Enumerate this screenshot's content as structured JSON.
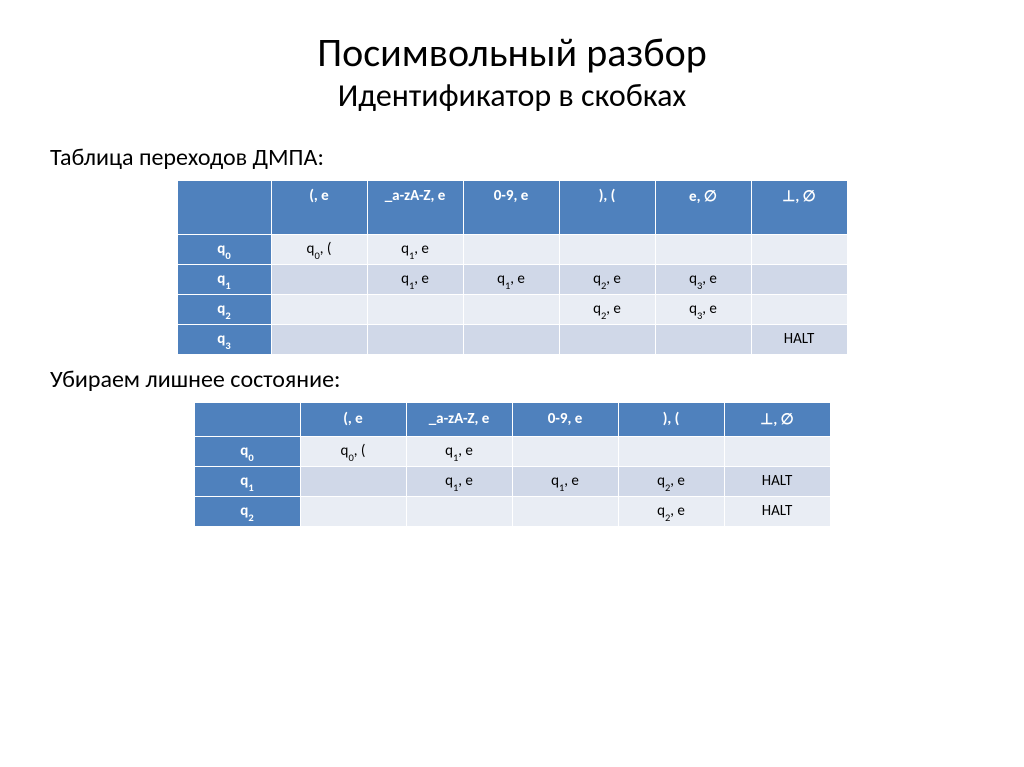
{
  "title": {
    "line1": "Посимвольный разбор",
    "line2": "Идентификатор в скобках"
  },
  "section1_label": "Таблица переходов ДМПА:",
  "section2_label": "Убираем лишнее состояние:",
  "table1": {
    "columns": [
      "(, e",
      "_a-zA-Z, e",
      "0-9, e",
      "), (",
      "e, ∅",
      "⊥, ∅"
    ],
    "row_headers_html": [
      "q<sub>0</sub>",
      "q<sub>1</sub>",
      "q<sub>2</sub>",
      "q<sub>3</sub>"
    ],
    "rows_html": [
      [
        "q<sub>0</sub>, (",
        "q<sub>1</sub>, e",
        "",
        "",
        "",
        ""
      ],
      [
        "",
        "q<sub>1</sub>, e",
        "q<sub>1</sub>, e",
        "q<sub>2</sub>, e",
        "q<sub>3</sub>, e",
        ""
      ],
      [
        "",
        "",
        "",
        "q<sub>2</sub>, e",
        "q<sub>3</sub>, e",
        ""
      ],
      [
        "",
        "",
        "",
        "",
        "",
        "HALT"
      ]
    ],
    "colors": {
      "header_bg": "#4f81bd",
      "header_fg": "#ffffff",
      "row_even_bg": "#e9edf4",
      "row_odd_bg": "#d0d8e8",
      "border": "#ffffff"
    }
  },
  "table2": {
    "columns": [
      "(, e",
      "_a-zA-Z, e",
      "0-9, e",
      "), (",
      "⊥, ∅"
    ],
    "row_headers_html": [
      "q<sub>0</sub>",
      "q<sub>1</sub>",
      "q<sub>2</sub>"
    ],
    "rows_html": [
      [
        "q<sub>0</sub>, (",
        "q<sub>1</sub>, e",
        "",
        "",
        ""
      ],
      [
        "",
        "q<sub>1</sub>, e",
        "q<sub>1</sub>, e",
        "q<sub>2</sub>, e",
        "HALT"
      ],
      [
        "",
        "",
        "",
        "q<sub>2</sub>, e",
        "HALT"
      ]
    ],
    "colors": {
      "header_bg": "#4f81bd",
      "header_fg": "#ffffff",
      "row_even_bg": "#e9edf4",
      "row_odd_bg": "#d0d8e8",
      "border": "#ffffff"
    }
  }
}
